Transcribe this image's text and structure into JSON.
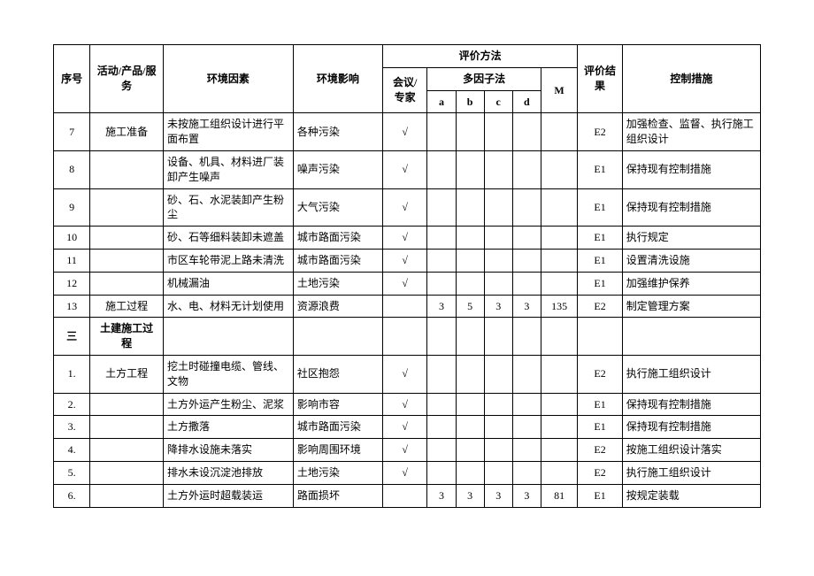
{
  "headers": {
    "seq": "序号",
    "activity": "活动/产品/服务",
    "factor": "环境因素",
    "impact": "环境影响",
    "method": "评价方法",
    "expert": "会议/专家",
    "multi": "多因子法",
    "a": "a",
    "b": "b",
    "c": "c",
    "d": "d",
    "m": "M",
    "result": "评价结果",
    "control": "控制措施"
  },
  "rows": [
    {
      "seq": "7",
      "activity": "施工准备",
      "factor": "未按施工组织设计进行平面布置",
      "impact": "各种污染",
      "expert": "√",
      "a": "",
      "b": "",
      "c": "",
      "d": "",
      "m": "",
      "result": "E2",
      "control": "加强检查、监督、执行施工组织设计"
    },
    {
      "seq": "8",
      "activity": "",
      "factor": "设备、机具、材料进厂装卸产生噪声",
      "impact": "噪声污染",
      "expert": "√",
      "a": "",
      "b": "",
      "c": "",
      "d": "",
      "m": "",
      "result": "E1",
      "control": "保持现有控制措施"
    },
    {
      "seq": "9",
      "activity": "",
      "factor": "砂、石、水泥装卸产生粉尘",
      "impact": "大气污染",
      "expert": "√",
      "a": "",
      "b": "",
      "c": "",
      "d": "",
      "m": "",
      "result": "E1",
      "control": "保持现有控制措施"
    },
    {
      "seq": "10",
      "activity": "",
      "factor": "砂、石等细料装卸未遮盖",
      "impact": "城市路面污染",
      "expert": "√",
      "a": "",
      "b": "",
      "c": "",
      "d": "",
      "m": "",
      "result": "E1",
      "control": "执行规定"
    },
    {
      "seq": "11",
      "activity": "",
      "factor": "市区车轮带泥上路未清洗",
      "impact": "城市路面污染",
      "expert": "√",
      "a": "",
      "b": "",
      "c": "",
      "d": "",
      "m": "",
      "result": "E1",
      "control": "设置清洗设施"
    },
    {
      "seq": "12",
      "activity": "",
      "factor": "机械漏油",
      "impact": "土地污染",
      "expert": "√",
      "a": "",
      "b": "",
      "c": "",
      "d": "",
      "m": "",
      "result": "E1",
      "control": "加强维护保养"
    },
    {
      "seq": "13",
      "activity": "施工过程",
      "factor": "水、电、材料无计划使用",
      "impact": "资源浪费",
      "expert": "",
      "a": "3",
      "b": "5",
      "c": "3",
      "d": "3",
      "m": "135",
      "result": "E2",
      "control": "制定管理方案"
    },
    {
      "seq": "三",
      "activity": "土建施工过程",
      "factor": "",
      "impact": "",
      "expert": "",
      "a": "",
      "b": "",
      "c": "",
      "d": "",
      "m": "",
      "result": "",
      "control": "",
      "bold": true
    },
    {
      "seq": "1.",
      "activity": "土方工程",
      "factor": "挖土时碰撞电缆、管线、文物",
      "impact": "社区抱怨",
      "expert": "√",
      "a": "",
      "b": "",
      "c": "",
      "d": "",
      "m": "",
      "result": "E2",
      "control": "执行施工组织设计"
    },
    {
      "seq": "2.",
      "activity": "",
      "factor": "土方外运产生粉尘、泥浆",
      "impact": "影响市容",
      "expert": "√",
      "a": "",
      "b": "",
      "c": "",
      "d": "",
      "m": "",
      "result": "E1",
      "control": "保持现有控制措施"
    },
    {
      "seq": "3.",
      "activity": "",
      "factor": "土方撒落",
      "impact": "城市路面污染",
      "expert": "√",
      "a": "",
      "b": "",
      "c": "",
      "d": "",
      "m": "",
      "result": "E1",
      "control": "保持现有控制措施"
    },
    {
      "seq": "4.",
      "activity": "",
      "factor": "降排水设施未落实",
      "impact": "影响周围环境",
      "expert": "√",
      "a": "",
      "b": "",
      "c": "",
      "d": "",
      "m": "",
      "result": "E2",
      "control": "按施工组织设计落实"
    },
    {
      "seq": "5.",
      "activity": "",
      "factor": "排水未设沉淀池排放",
      "impact": "土地污染",
      "expert": "√",
      "a": "",
      "b": "",
      "c": "",
      "d": "",
      "m": "",
      "result": "E2",
      "control": "执行施工组织设计"
    },
    {
      "seq": "6.",
      "activity": "",
      "factor": "土方外运时超载装运",
      "impact": "路面损坏",
      "expert": "",
      "a": "3",
      "b": "3",
      "c": "3",
      "d": "3",
      "m": "81",
      "result": "E1",
      "control": "按规定装载"
    }
  ]
}
